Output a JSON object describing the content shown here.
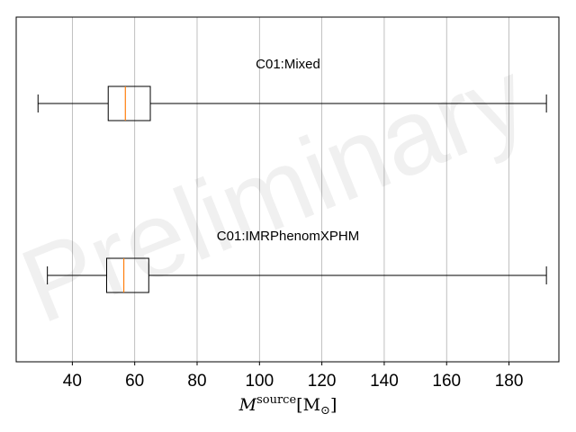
{
  "chart_data": {
    "type": "boxplot",
    "orientation": "horizontal",
    "xlim": [
      22,
      196
    ],
    "xticks": [
      40,
      60,
      80,
      100,
      120,
      140,
      160,
      180
    ],
    "xlabel": {
      "symbol": "M",
      "sup": "source",
      "unit": "[M",
      "unit_sub": "⊙",
      "unit_close": "]"
    },
    "grid": "vertical",
    "watermark": "Preliminary",
    "series": [
      {
        "name": "C01:Mixed",
        "whisker_low": 29,
        "q1": 51.5,
        "median": 57,
        "q3": 65,
        "whisker_high": 192
      },
      {
        "name": "C01:IMRPhenomXPHM",
        "whisker_low": 32,
        "q1": 51,
        "median": 56.5,
        "q3": 64.5,
        "whisker_high": 192
      }
    ],
    "colors": {
      "box": "#000000",
      "median": "#ff7f0e",
      "grid": "#b0b0b0"
    }
  }
}
